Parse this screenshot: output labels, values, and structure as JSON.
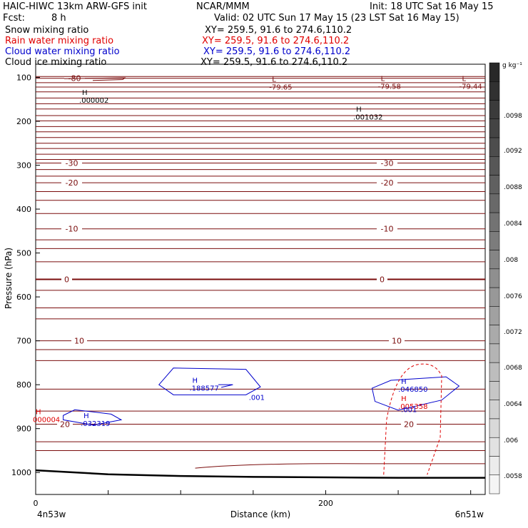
{
  "header": {
    "model": "HAIC-HIWC 13km ARW-GFS init",
    "org": "NCAR/MMM",
    "init": "Init: 18 UTC Sat 16 May 15",
    "fcst_label": "Fcst:",
    "fcst_value": "8 h",
    "valid": "Valid: 02 UTC Sun 17 May 15 (23 LST Sat 16 May 15)"
  },
  "fields": [
    {
      "name": "Snow mixing ratio",
      "xy": "XY= 259.5, 91.6 to 274.6,110.2",
      "color": "#000000"
    },
    {
      "name": "Rain water mixing ratio",
      "xy": "XY= 259.5, 91.6 to 274.6,110.2",
      "color": "#e00000"
    },
    {
      "name": "Cloud water mixing ratio",
      "xy": "XY= 259.5, 91.6 to 274.6,110.2",
      "color": "#0000cc"
    },
    {
      "name": "Cloud ice mixing ratio",
      "xy": "XY= 259.5, 91.6 to 274.6,110.2",
      "color": "#000000"
    }
  ],
  "chart_data": {
    "type": "contour-cross-section",
    "xlabel": "Distance (km)",
    "ylabel": "Pressure (hPa)",
    "xlim": [
      0,
      310
    ],
    "ylim": [
      1050,
      70
    ],
    "x_ticks": [
      0,
      200
    ],
    "y_ticks": [
      100,
      200,
      300,
      400,
      500,
      600,
      700,
      800,
      900,
      1000
    ],
    "x_endpoints": {
      "left": "4n53w",
      "right": "6n51w"
    },
    "colorbar": {
      "unit": "g kg⁻¹",
      "labels": [
        ".0098",
        ".0092",
        ".0088",
        ".0084",
        ".008",
        ".0076",
        ".0072",
        ".0068",
        ".0064",
        ".006",
        ".0058"
      ]
    },
    "temperature_contours": [
      {
        "label": "-80",
        "p": 102
      },
      {
        "label": "-30",
        "p": 295
      },
      {
        "label": "-20",
        "p": 340
      },
      {
        "label": "-10",
        "p": 445
      },
      {
        "label": "0",
        "p": 560
      },
      {
        "label": "10",
        "p": 700
      },
      {
        "label": "20",
        "p": 890
      }
    ],
    "extrema": [
      {
        "kind": "L",
        "value": "-79.65",
        "x": 163,
        "p": 110
      },
      {
        "kind": "L",
        "value": "-79.58",
        "x": 238,
        "p": 108
      },
      {
        "kind": "L",
        "value": "-79.44",
        "x": 294,
        "p": 108
      },
      {
        "kind": "H",
        "value": ".000002",
        "x": 32,
        "p": 140
      },
      {
        "kind": "H",
        "value": ".001032",
        "x": 221,
        "p": 178
      },
      {
        "kind": "H",
        "value": ".188577",
        "x": 108,
        "p": 796
      },
      {
        "kind": "H",
        "value": ".032319",
        "x": 33,
        "p": 876
      },
      {
        "kind": "H",
        "value": ".046850",
        "x": 252,
        "p": 798
      },
      {
        "kind": "H",
        "value": ".005358",
        "x": 252,
        "p": 837
      },
      {
        "kind": "H",
        "value": "000004",
        "x": 0,
        "p": 867
      }
    ],
    "cloud_water_labels": [
      {
        "value": ".001",
        "x": 147,
        "p": 828
      },
      {
        "value": ".001",
        "x": 252,
        "p": 856
      }
    ],
    "ground_pressure": [
      {
        "x": 0,
        "p": 995
      },
      {
        "x": 50,
        "p": 1004
      },
      {
        "x": 100,
        "p": 1008
      },
      {
        "x": 150,
        "p": 1010
      },
      {
        "x": 200,
        "p": 1011
      },
      {
        "x": 250,
        "p": 1012
      },
      {
        "x": 310,
        "p": 1012
      }
    ],
    "colors": {
      "temperature": "#7a0c0c",
      "rain": "#e00000",
      "cloud": "#0000cc",
      "ground": "#000000"
    }
  }
}
